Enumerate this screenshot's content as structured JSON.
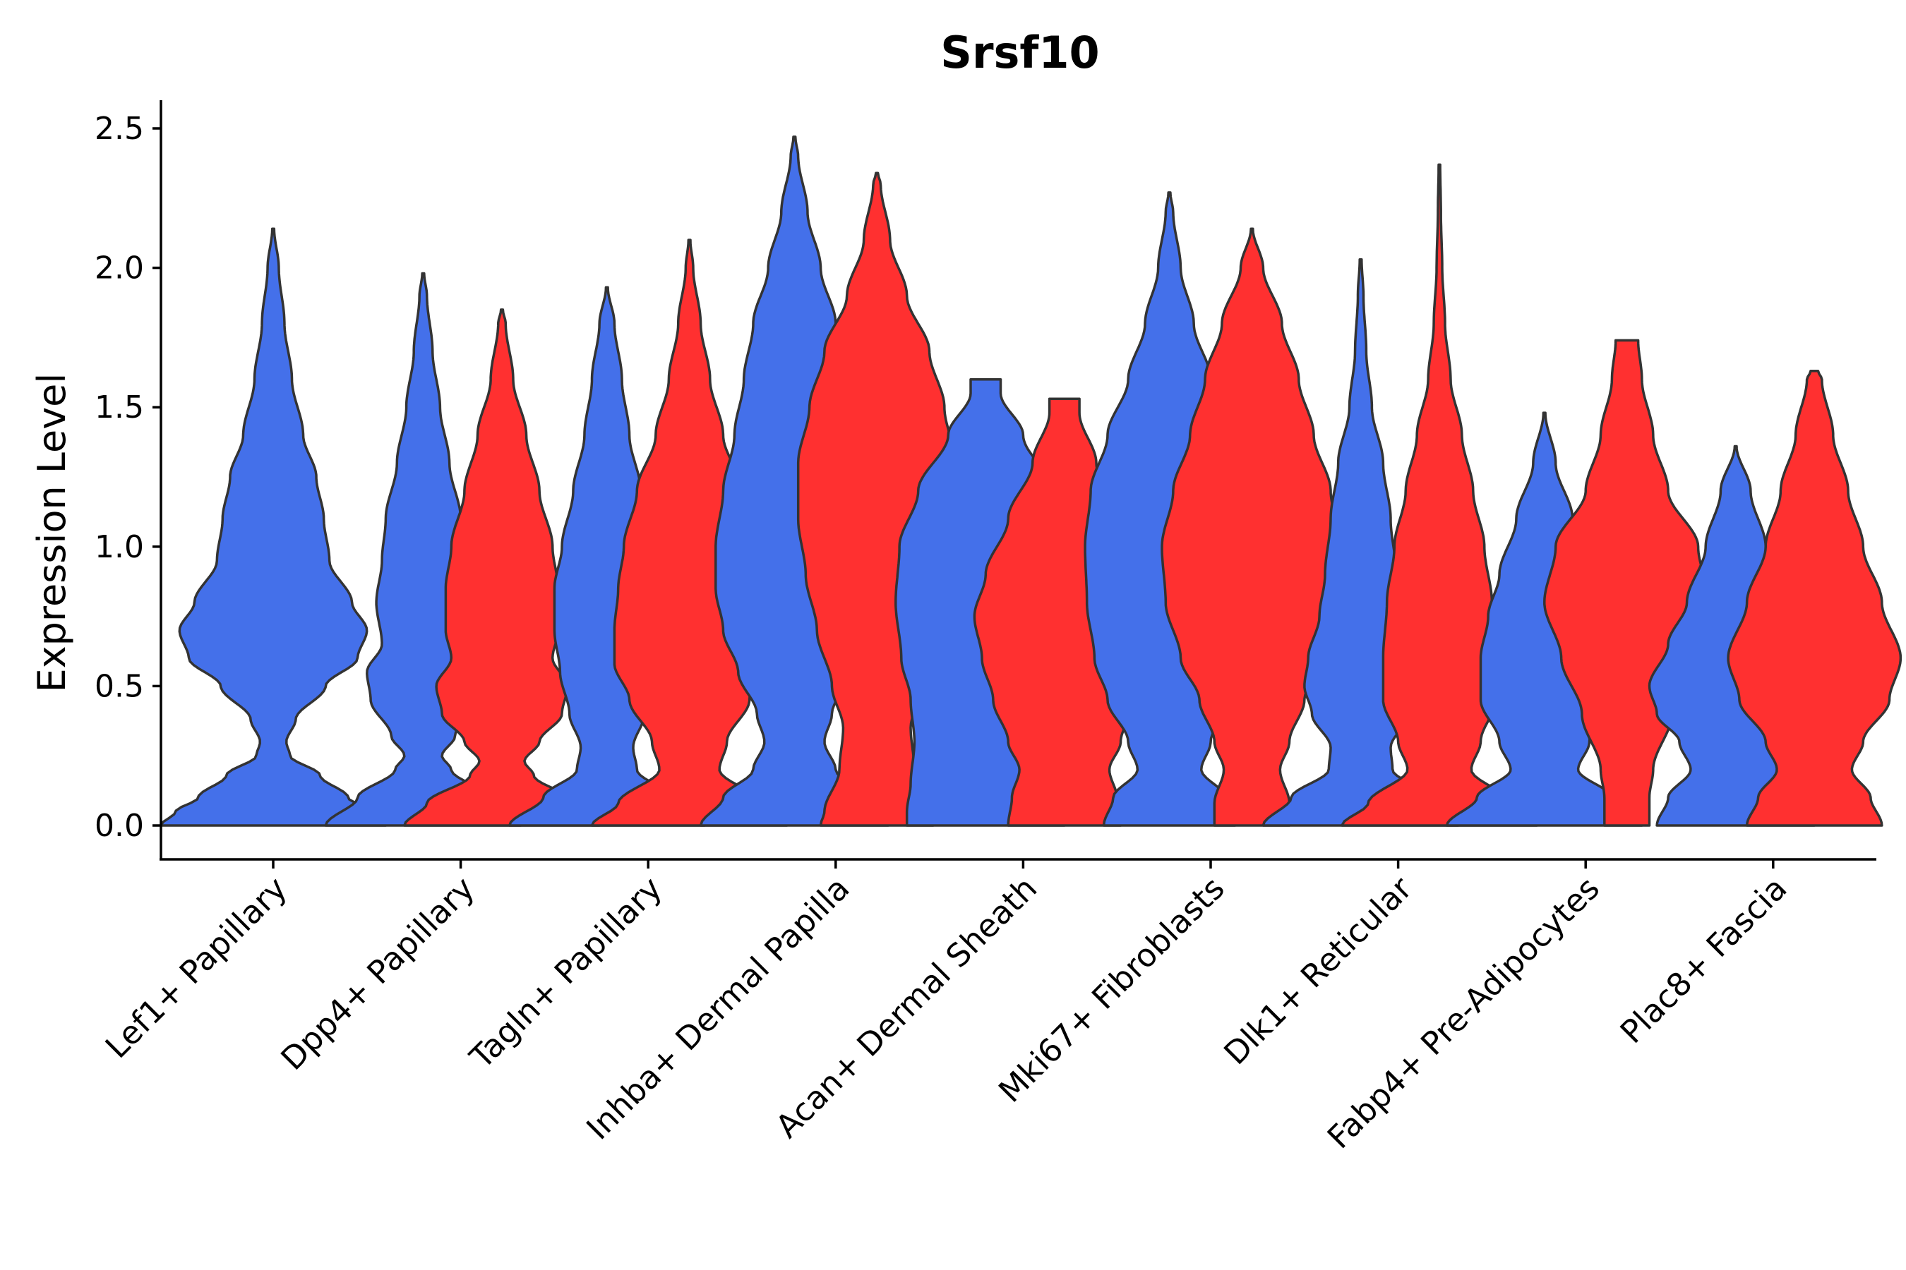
{
  "chart_data": {
    "type": "violin",
    "title": "Srsf10",
    "xlabel": "",
    "ylabel": "Expression Level",
    "ylim": [
      -0.12,
      2.6
    ],
    "yticks": [
      0.0,
      0.5,
      1.0,
      1.5,
      2.0,
      2.5
    ],
    "ytick_labels": [
      "0.0",
      "0.5",
      "1.0",
      "1.5",
      "2.0",
      "2.5"
    ],
    "grid": false,
    "legend": "none",
    "colors": {
      "group_a": "#4470EA",
      "group_b": "#FF3030",
      "outline": "#333333"
    },
    "categories": [
      "Lef1+ Papillary",
      "Dpp4+ Papillary",
      "Tagln+ Papillary",
      "Inhba+ Dermal Papilla",
      "Acan+ Dermal Sheath",
      "Mki67+ Fibroblasts",
      "Dlk1+ Reticular",
      "Fabp4+ Pre-Adipocytes",
      "Plac8+ Fascia"
    ],
    "violins": [
      {
        "category": 0,
        "group": "group_a",
        "offset": 0,
        "max": 2.14,
        "profile": [
          [
            0,
            0.6
          ],
          [
            0.05,
            0.52
          ],
          [
            0.1,
            0.4
          ],
          [
            0.18,
            0.25
          ],
          [
            0.25,
            0.09
          ],
          [
            0.3,
            0.07
          ],
          [
            0.38,
            0.12
          ],
          [
            0.5,
            0.28
          ],
          [
            0.6,
            0.45
          ],
          [
            0.7,
            0.5
          ],
          [
            0.8,
            0.42
          ],
          [
            0.95,
            0.3
          ],
          [
            1.1,
            0.27
          ],
          [
            1.25,
            0.23
          ],
          [
            1.4,
            0.16
          ],
          [
            1.6,
            0.1
          ],
          [
            1.8,
            0.06
          ],
          [
            2.0,
            0.03
          ],
          [
            2.14,
            0.005
          ]
        ]
      },
      {
        "category": 1,
        "group": "group_a",
        "offset": -0.2,
        "max": 1.98,
        "profile": [
          [
            0,
            0.52
          ],
          [
            0.1,
            0.35
          ],
          [
            0.2,
            0.15
          ],
          [
            0.25,
            0.1
          ],
          [
            0.32,
            0.17
          ],
          [
            0.45,
            0.28
          ],
          [
            0.55,
            0.3
          ],
          [
            0.65,
            0.22
          ],
          [
            0.8,
            0.25
          ],
          [
            0.95,
            0.22
          ],
          [
            1.1,
            0.2
          ],
          [
            1.3,
            0.14
          ],
          [
            1.5,
            0.09
          ],
          [
            1.7,
            0.05
          ],
          [
            1.9,
            0.02
          ],
          [
            1.98,
            0.005
          ]
        ]
      },
      {
        "category": 1,
        "group": "group_b",
        "offset": 0.22,
        "max": 1.85,
        "profile": [
          [
            0,
            0.52
          ],
          [
            0.08,
            0.4
          ],
          [
            0.18,
            0.17
          ],
          [
            0.23,
            0.12
          ],
          [
            0.3,
            0.2
          ],
          [
            0.4,
            0.32
          ],
          [
            0.5,
            0.35
          ],
          [
            0.6,
            0.27
          ],
          [
            0.7,
            0.3
          ],
          [
            0.85,
            0.3
          ],
          [
            1.0,
            0.27
          ],
          [
            1.2,
            0.2
          ],
          [
            1.4,
            0.13
          ],
          [
            1.6,
            0.06
          ],
          [
            1.8,
            0.02
          ],
          [
            1.85,
            0.005
          ]
        ]
      },
      {
        "category": 2,
        "group": "group_a",
        "offset": -0.22,
        "max": 1.93,
        "profile": [
          [
            0,
            0.52
          ],
          [
            0.1,
            0.34
          ],
          [
            0.2,
            0.16
          ],
          [
            0.28,
            0.14
          ],
          [
            0.4,
            0.2
          ],
          [
            0.55,
            0.25
          ],
          [
            0.7,
            0.28
          ],
          [
            0.85,
            0.28
          ],
          [
            1.0,
            0.24
          ],
          [
            1.2,
            0.18
          ],
          [
            1.4,
            0.12
          ],
          [
            1.6,
            0.08
          ],
          [
            1.8,
            0.04
          ],
          [
            1.93,
            0.005
          ]
        ]
      },
      {
        "category": 2,
        "group": "group_b",
        "offset": 0.22,
        "max": 2.1,
        "profile": [
          [
            0,
            0.52
          ],
          [
            0.08,
            0.38
          ],
          [
            0.2,
            0.16
          ],
          [
            0.3,
            0.2
          ],
          [
            0.45,
            0.32
          ],
          [
            0.58,
            0.4
          ],
          [
            0.7,
            0.4
          ],
          [
            0.85,
            0.38
          ],
          [
            1.0,
            0.35
          ],
          [
            1.2,
            0.28
          ],
          [
            1.4,
            0.18
          ],
          [
            1.6,
            0.11
          ],
          [
            1.8,
            0.06
          ],
          [
            2.0,
            0.02
          ],
          [
            2.1,
            0.005
          ]
        ]
      },
      {
        "category": 3,
        "group": "group_a",
        "offset": -0.22,
        "max": 2.47,
        "profile": [
          [
            0,
            0.5
          ],
          [
            0.1,
            0.38
          ],
          [
            0.2,
            0.22
          ],
          [
            0.3,
            0.16
          ],
          [
            0.4,
            0.2
          ],
          [
            0.55,
            0.3
          ],
          [
            0.7,
            0.38
          ],
          [
            0.85,
            0.42
          ],
          [
            1.0,
            0.42
          ],
          [
            1.2,
            0.38
          ],
          [
            1.4,
            0.32
          ],
          [
            1.6,
            0.27
          ],
          [
            1.8,
            0.22
          ],
          [
            2.0,
            0.14
          ],
          [
            2.2,
            0.07
          ],
          [
            2.4,
            0.02
          ],
          [
            2.47,
            0.005
          ]
        ]
      },
      {
        "category": 3,
        "group": "group_b",
        "offset": 0.22,
        "max": 2.34,
        "profile": [
          [
            0,
            0.3
          ],
          [
            0.05,
            0.28
          ],
          [
            0.2,
            0.2
          ],
          [
            0.35,
            0.18
          ],
          [
            0.5,
            0.24
          ],
          [
            0.7,
            0.32
          ],
          [
            0.9,
            0.38
          ],
          [
            1.1,
            0.42
          ],
          [
            1.3,
            0.42
          ],
          [
            1.5,
            0.36
          ],
          [
            1.7,
            0.28
          ],
          [
            1.9,
            0.16
          ],
          [
            2.1,
            0.07
          ],
          [
            2.3,
            0.02
          ],
          [
            2.34,
            0.005
          ]
        ]
      },
      {
        "category": 4,
        "group": "group_a",
        "offset": -0.2,
        "max": 1.6,
        "profile": [
          [
            0,
            0.42
          ],
          [
            0.05,
            0.42
          ],
          [
            0.15,
            0.4
          ],
          [
            0.3,
            0.38
          ],
          [
            0.45,
            0.4
          ],
          [
            0.6,
            0.45
          ],
          [
            0.8,
            0.48
          ],
          [
            1.0,
            0.46
          ],
          [
            1.2,
            0.36
          ],
          [
            1.4,
            0.2
          ],
          [
            1.55,
            0.08
          ],
          [
            1.6,
            0.08
          ]
        ]
      },
      {
        "category": 4,
        "group": "group_b",
        "offset": 0.22,
        "max": 1.53,
        "profile": [
          [
            0,
            0.3
          ],
          [
            0.1,
            0.28
          ],
          [
            0.2,
            0.24
          ],
          [
            0.3,
            0.3
          ],
          [
            0.45,
            0.38
          ],
          [
            0.6,
            0.44
          ],
          [
            0.75,
            0.48
          ],
          [
            0.9,
            0.42
          ],
          [
            1.1,
            0.3
          ],
          [
            1.3,
            0.17
          ],
          [
            1.48,
            0.08
          ],
          [
            1.53,
            0.08
          ]
        ]
      },
      {
        "category": 5,
        "group": "group_a",
        "offset": -0.22,
        "max": 2.27,
        "profile": [
          [
            0,
            0.35
          ],
          [
            0.1,
            0.3
          ],
          [
            0.2,
            0.17
          ],
          [
            0.3,
            0.22
          ],
          [
            0.45,
            0.33
          ],
          [
            0.6,
            0.4
          ],
          [
            0.8,
            0.44
          ],
          [
            1.0,
            0.45
          ],
          [
            1.2,
            0.42
          ],
          [
            1.4,
            0.33
          ],
          [
            1.6,
            0.22
          ],
          [
            1.8,
            0.13
          ],
          [
            2.0,
            0.06
          ],
          [
            2.2,
            0.02
          ],
          [
            2.27,
            0.005
          ]
        ]
      },
      {
        "category": 5,
        "group": "group_b",
        "offset": 0.22,
        "max": 2.14,
        "profile": [
          [
            0,
            0.2
          ],
          [
            0.08,
            0.2
          ],
          [
            0.2,
            0.15
          ],
          [
            0.3,
            0.2
          ],
          [
            0.45,
            0.28
          ],
          [
            0.6,
            0.38
          ],
          [
            0.8,
            0.46
          ],
          [
            1.0,
            0.48
          ],
          [
            1.2,
            0.42
          ],
          [
            1.4,
            0.33
          ],
          [
            1.6,
            0.25
          ],
          [
            1.8,
            0.16
          ],
          [
            2.0,
            0.06
          ],
          [
            2.14,
            0.005
          ]
        ]
      },
      {
        "category": 6,
        "group": "group_a",
        "offset": -0.2,
        "max": 2.03,
        "profile": [
          [
            0,
            0.52
          ],
          [
            0.1,
            0.37
          ],
          [
            0.2,
            0.17
          ],
          [
            0.28,
            0.16
          ],
          [
            0.4,
            0.26
          ],
          [
            0.5,
            0.3
          ],
          [
            0.6,
            0.28
          ],
          [
            0.75,
            0.22
          ],
          [
            0.9,
            0.19
          ],
          [
            1.1,
            0.16
          ],
          [
            1.3,
            0.12
          ],
          [
            1.5,
            0.06
          ],
          [
            1.7,
            0.03
          ],
          [
            1.9,
            0.015
          ],
          [
            2.03,
            0.005
          ]
        ]
      },
      {
        "category": 6,
        "group": "group_b",
        "offset": 0.22,
        "max": 2.37,
        "profile": [
          [
            0,
            0.52
          ],
          [
            0.08,
            0.38
          ],
          [
            0.2,
            0.17
          ],
          [
            0.3,
            0.22
          ],
          [
            0.45,
            0.3
          ],
          [
            0.6,
            0.3
          ],
          [
            0.8,
            0.28
          ],
          [
            1.0,
            0.24
          ],
          [
            1.2,
            0.18
          ],
          [
            1.4,
            0.12
          ],
          [
            1.6,
            0.06
          ],
          [
            1.8,
            0.03
          ],
          [
            2.0,
            0.015
          ],
          [
            2.2,
            0.008
          ],
          [
            2.37,
            0.004
          ]
        ]
      },
      {
        "category": 7,
        "group": "group_a",
        "offset": -0.22,
        "max": 1.48,
        "profile": [
          [
            0,
            0.52
          ],
          [
            0.1,
            0.36
          ],
          [
            0.2,
            0.18
          ],
          [
            0.3,
            0.24
          ],
          [
            0.45,
            0.34
          ],
          [
            0.6,
            0.34
          ],
          [
            0.75,
            0.3
          ],
          [
            0.9,
            0.24
          ],
          [
            1.1,
            0.15
          ],
          [
            1.3,
            0.06
          ],
          [
            1.48,
            0.005
          ]
        ]
      },
      {
        "category": 7,
        "group": "group_b",
        "offset": 0.22,
        "max": 1.74,
        "profile": [
          [
            0,
            0.12
          ],
          [
            0.1,
            0.12
          ],
          [
            0.2,
            0.14
          ],
          [
            0.4,
            0.24
          ],
          [
            0.6,
            0.35
          ],
          [
            0.8,
            0.44
          ],
          [
            1.0,
            0.38
          ],
          [
            1.2,
            0.22
          ],
          [
            1.4,
            0.14
          ],
          [
            1.6,
            0.08
          ],
          [
            1.74,
            0.06
          ]
        ]
      },
      {
        "category": 8,
        "group": "group_a",
        "offset": -0.2,
        "max": 1.36,
        "profile": [
          [
            0,
            0.42
          ],
          [
            0.1,
            0.36
          ],
          [
            0.2,
            0.24
          ],
          [
            0.3,
            0.3
          ],
          [
            0.4,
            0.42
          ],
          [
            0.5,
            0.46
          ],
          [
            0.65,
            0.36
          ],
          [
            0.8,
            0.26
          ],
          [
            1.0,
            0.16
          ],
          [
            1.2,
            0.08
          ],
          [
            1.36,
            0.005
          ]
        ]
      },
      {
        "category": 8,
        "group": "group_b",
        "offset": 0.22,
        "max": 1.63,
        "profile": [
          [
            0,
            0.36
          ],
          [
            0.1,
            0.3
          ],
          [
            0.2,
            0.2
          ],
          [
            0.3,
            0.26
          ],
          [
            0.45,
            0.4
          ],
          [
            0.6,
            0.46
          ],
          [
            0.8,
            0.36
          ],
          [
            1.0,
            0.26
          ],
          [
            1.2,
            0.18
          ],
          [
            1.4,
            0.1
          ],
          [
            1.6,
            0.04
          ],
          [
            1.63,
            0.02
          ]
        ]
      }
    ]
  }
}
